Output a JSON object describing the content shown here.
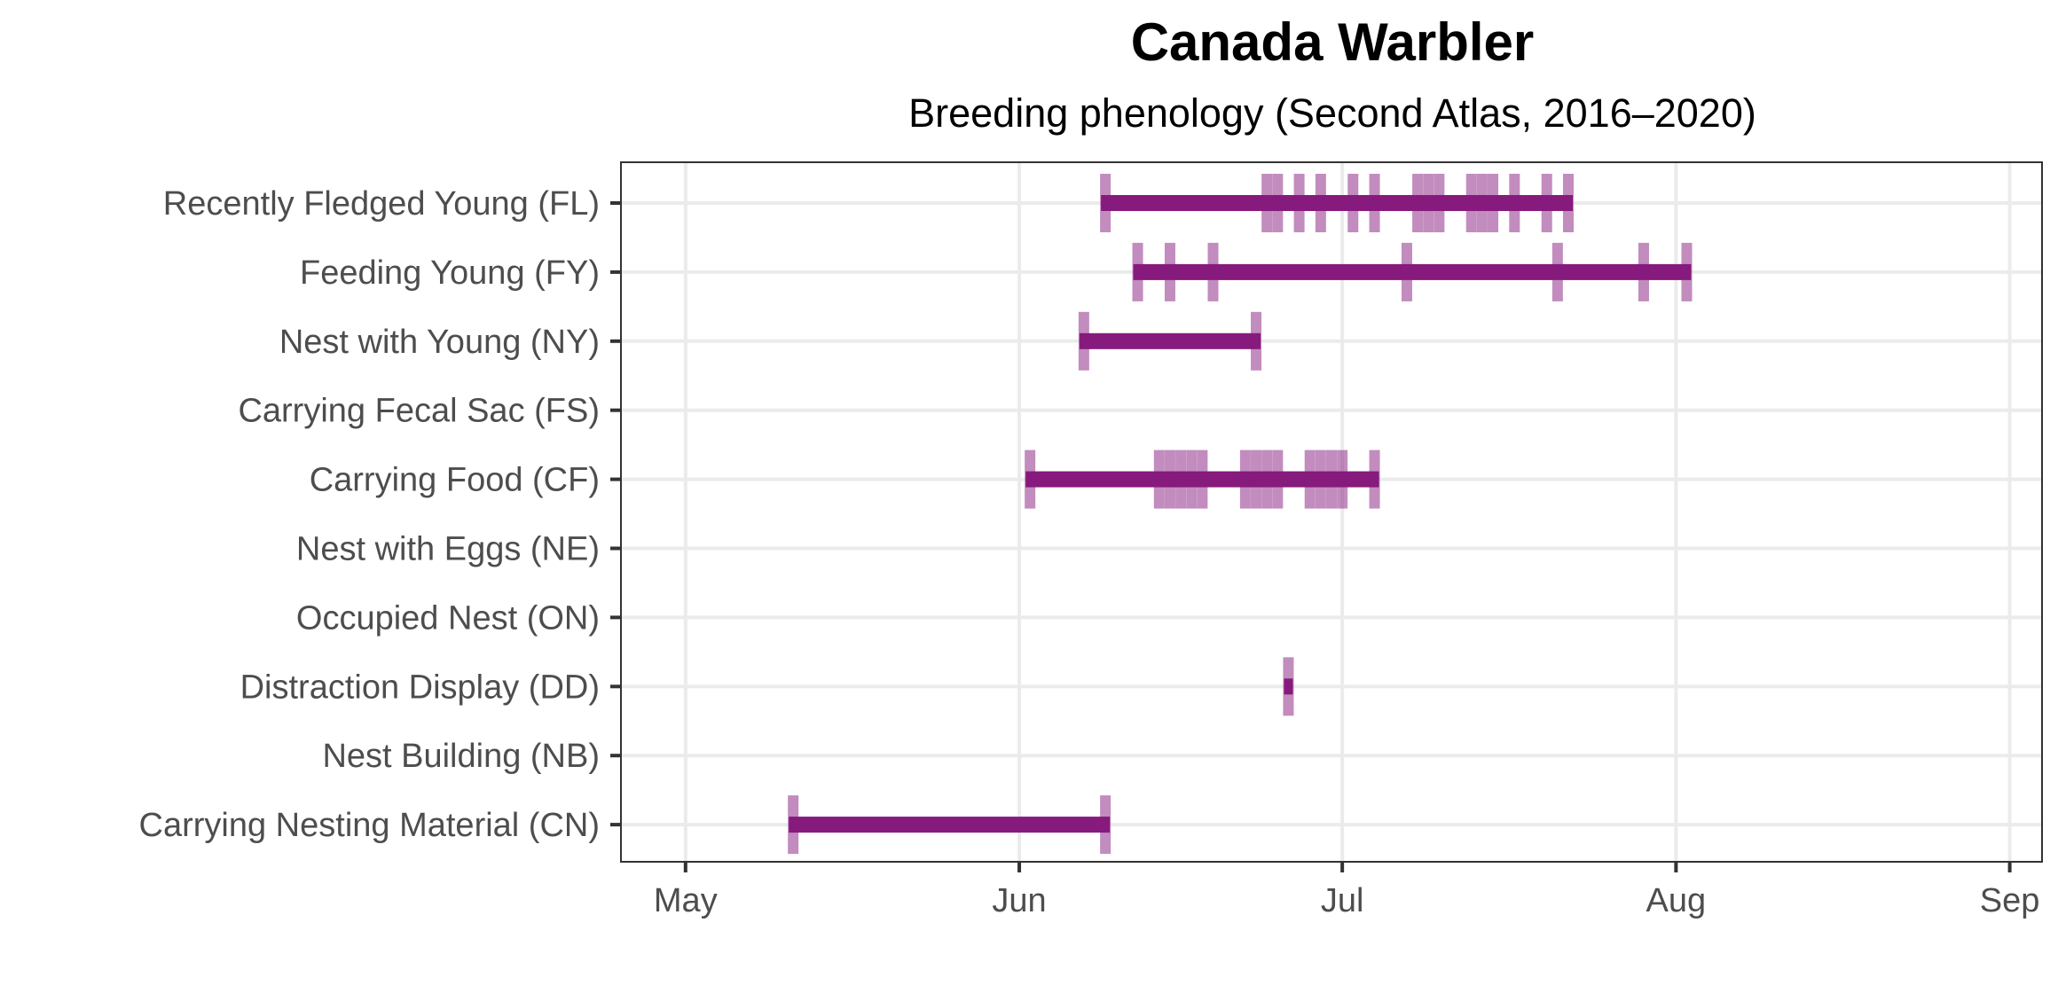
{
  "chart_data": {
    "type": "timeline",
    "title": "Canada Warbler",
    "subtitle": "Breeding phenology (Second Atlas, 2016–2020)",
    "xlabel": "",
    "ylabel": "",
    "x_axis": {
      "range": [
        "04-25",
        "09-04"
      ],
      "ticks": [
        {
          "date": "05-01",
          "label": "May"
        },
        {
          "date": "06-01",
          "label": "Jun"
        },
        {
          "date": "07-01",
          "label": "Jul"
        },
        {
          "date": "08-01",
          "label": "Aug"
        },
        {
          "date": "09-01",
          "label": "Sep"
        }
      ]
    },
    "grid": true,
    "colors": {
      "range_bar": "#861a7d",
      "observation": "#861a7d",
      "grid": "#ebebeb",
      "axis": "#333333"
    },
    "categories": [
      {
        "label": "Recently Fledged Young (FL)",
        "range": [
          "06-09",
          "07-22"
        ],
        "observations": [
          "06-09",
          "06-24",
          "06-25",
          "06-27",
          "06-29",
          "07-02",
          "07-04",
          "07-08",
          "07-09",
          "07-10",
          "07-13",
          "07-14",
          "07-15",
          "07-17",
          "07-20",
          "07-22"
        ]
      },
      {
        "label": "Feeding Young (FY)",
        "range": [
          "06-12",
          "08-02"
        ],
        "observations": [
          "06-12",
          "06-15",
          "06-19",
          "07-07",
          "07-21",
          "07-29",
          "08-02"
        ]
      },
      {
        "label": "Nest with Young (NY)",
        "range": [
          "06-07",
          "06-23"
        ],
        "observations": [
          "06-07",
          "06-23"
        ]
      },
      {
        "label": "Carrying Fecal Sac (FS)",
        "range": null,
        "observations": []
      },
      {
        "label": "Carrying Food (CF)",
        "range": [
          "06-02",
          "07-04"
        ],
        "observations": [
          "06-02",
          "06-14",
          "06-15",
          "06-16",
          "06-17",
          "06-18",
          "06-22",
          "06-23",
          "06-24",
          "06-25",
          "06-28",
          "06-29",
          "06-30",
          "07-01",
          "07-04"
        ]
      },
      {
        "label": "Nest with Eggs (NE)",
        "range": null,
        "observations": []
      },
      {
        "label": "Occupied Nest (ON)",
        "range": null,
        "observations": []
      },
      {
        "label": "Distraction Display (DD)",
        "range": [
          "06-26",
          "06-26"
        ],
        "observations": [
          "06-26"
        ]
      },
      {
        "label": "Nest Building (NB)",
        "range": null,
        "observations": []
      },
      {
        "label": "Carrying Nesting Material (CN)",
        "range": [
          "05-11",
          "06-09"
        ],
        "observations": [
          "05-11",
          "06-09"
        ]
      }
    ]
  }
}
